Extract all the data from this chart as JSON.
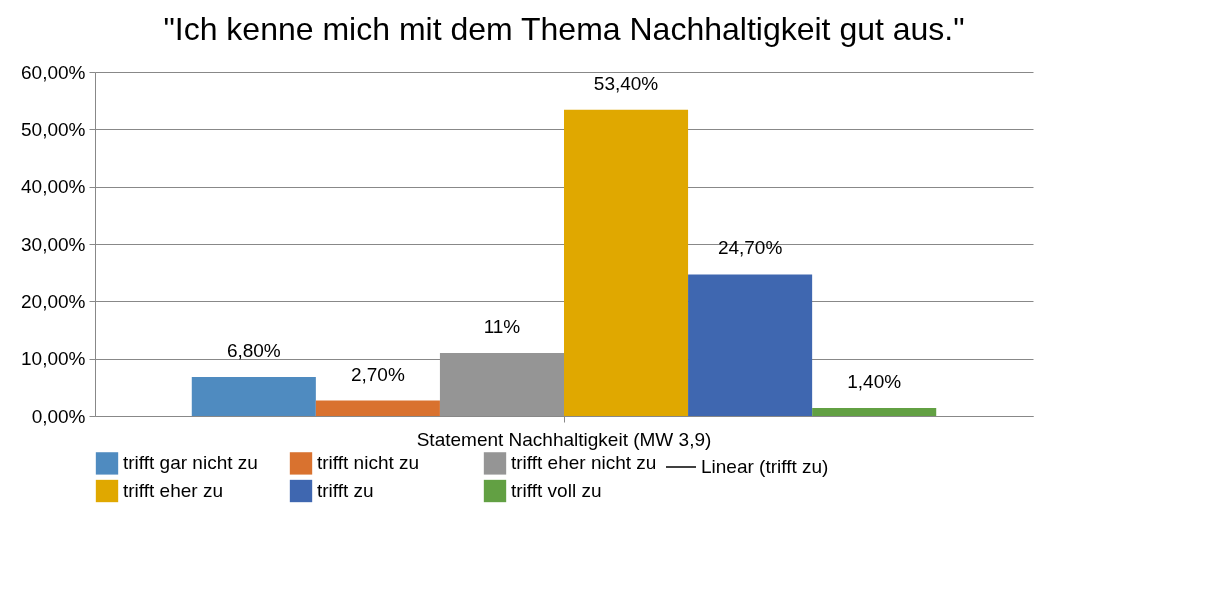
{
  "chart_data": {
    "type": "bar",
    "title": "\"Ich kenne mich mit dem Thema Nachhaltigkeit gut aus.\"",
    "categories": [
      "Statement Nachhaltigkeit (MW 3,9)"
    ],
    "series": [
      {
        "name": "trifft gar nicht zu",
        "color": "#4f8bc0",
        "values": [
          6.8
        ],
        "value_labels": [
          "6,80%"
        ]
      },
      {
        "name": "trifft nicht zu",
        "color": "#d9722f",
        "values": [
          2.7
        ],
        "value_labels": [
          "2,70%"
        ]
      },
      {
        "name": "trifft eher nicht zu",
        "color": "#959595",
        "values": [
          11
        ],
        "value_labels": [
          "11%"
        ]
      },
      {
        "name": "trifft eher zu",
        "color": "#e0a800",
        "values": [
          53.4
        ],
        "value_labels": [
          "53,40%"
        ]
      },
      {
        "name": "trifft zu",
        "color": "#3f67b0",
        "values": [
          24.7
        ],
        "value_labels": [
          "24,70%"
        ]
      },
      {
        "name": "trifft voll zu",
        "color": "#62a043",
        "values": [
          1.4
        ],
        "value_labels": [
          "1,40%"
        ]
      },
      {
        "name": "Linear (trifft zu)",
        "type": "line",
        "color": "#000000",
        "values": [
          null
        ]
      }
    ],
    "ylim": [
      0,
      60
    ],
    "yticks": [
      {
        "value": 0,
        "label": "0,00%"
      },
      {
        "value": 10,
        "label": "10,00%"
      },
      {
        "value": 20,
        "label": "20,00%"
      },
      {
        "value": 30,
        "label": "30,00%"
      },
      {
        "value": 40,
        "label": "40,00%"
      },
      {
        "value": 50,
        "label": "50,00%"
      },
      {
        "value": 60,
        "label": "60,00%"
      }
    ],
    "grid": "y",
    "legend": "bottom"
  }
}
